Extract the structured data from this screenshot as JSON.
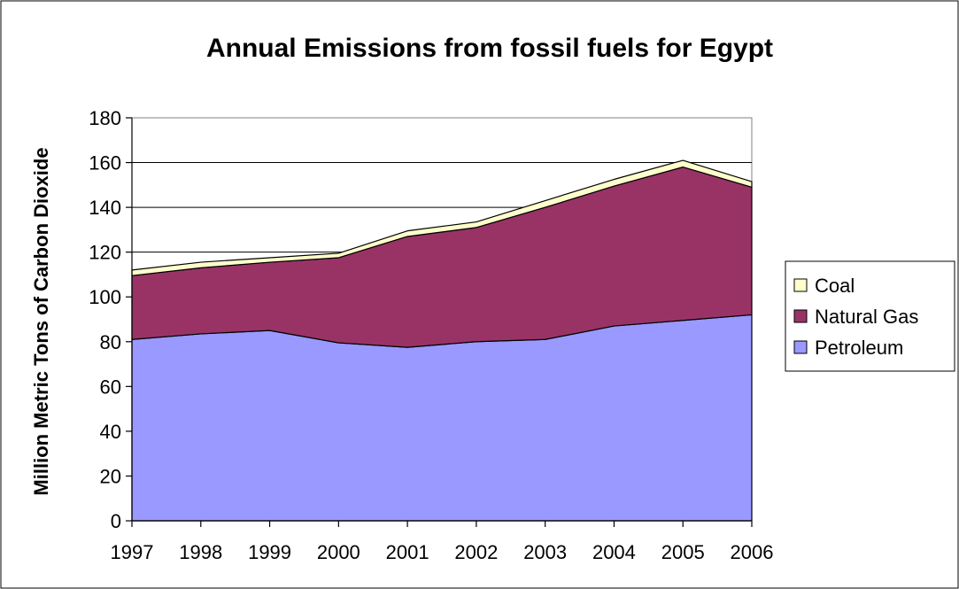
{
  "chart_data": {
    "type": "area",
    "stacked": true,
    "title": "Annual Emissions from fossil fuels for Egypt",
    "xlabel": "",
    "ylabel": "Million Metric Tons of Carbon Dioxide",
    "x": [
      "1997",
      "1998",
      "1999",
      "2000",
      "2001",
      "2002",
      "2003",
      "2004",
      "2005",
      "2006"
    ],
    "ylim": [
      0,
      180
    ],
    "yticks": [
      "0",
      "20",
      "40",
      "60",
      "80",
      "100",
      "120",
      "140",
      "160",
      "180"
    ],
    "grid": true,
    "legend_position": "right",
    "series": [
      {
        "name": "Petroleum",
        "color": "#9999ff",
        "values": [
          81,
          83.5,
          85,
          79.5,
          77.5,
          80,
          81,
          87,
          89.5,
          92
        ]
      },
      {
        "name": "Natural Gas",
        "color": "#993366",
        "values": [
          28.5,
          29.5,
          30.5,
          38,
          49.5,
          51,
          59,
          62.5,
          68.5,
          57
        ]
      },
      {
        "name": "Coal",
        "color": "#ffffcc",
        "values": [
          2.5,
          2.5,
          2,
          2,
          2.5,
          2.5,
          3,
          3,
          3,
          2.5
        ]
      }
    ]
  }
}
